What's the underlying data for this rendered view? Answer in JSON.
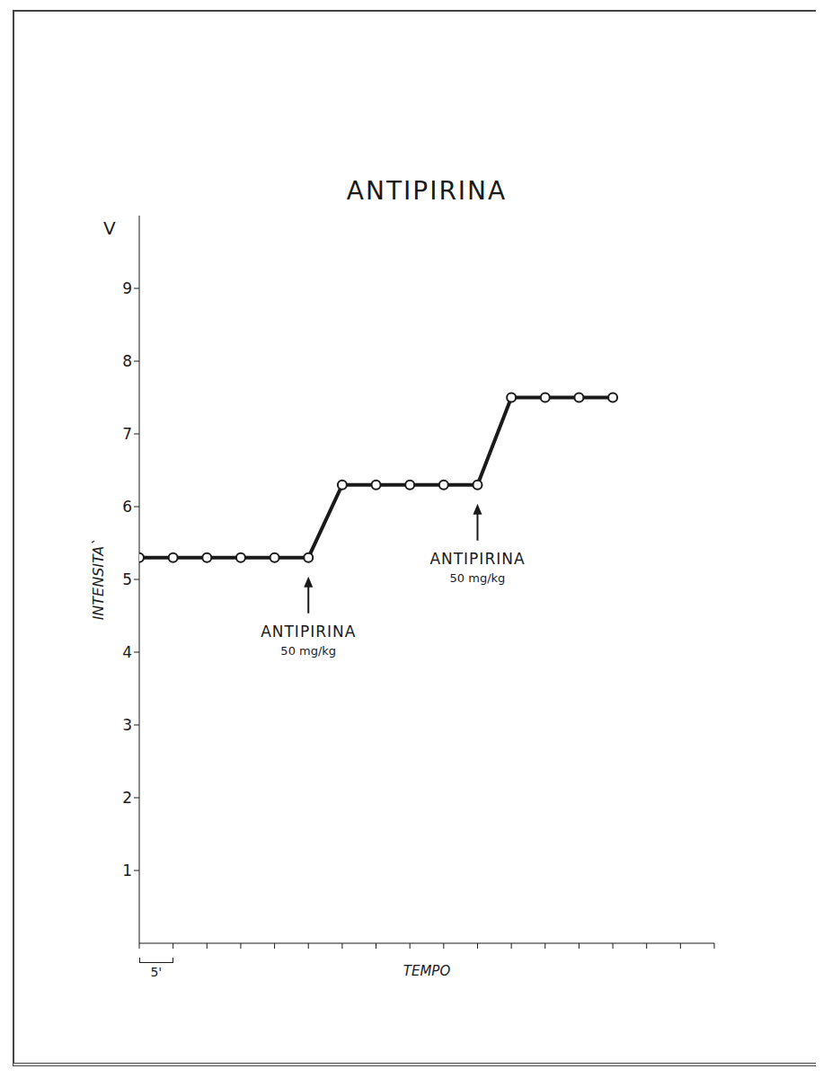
{
  "chart_data": {
    "type": "line",
    "title": "ANTIPIRINA",
    "y_label": "INTENSITA`",
    "y_unit": "V",
    "x_label": "TEMPO",
    "x": [
      0,
      5,
      10,
      15,
      20,
      25,
      30,
      35,
      40,
      45,
      50,
      55,
      60,
      65,
      70
    ],
    "values": [
      5.3,
      5.3,
      5.3,
      5.3,
      5.3,
      5.3,
      6.3,
      6.3,
      6.3,
      6.3,
      6.3,
      7.5,
      7.5,
      7.5,
      7.5
    ],
    "color": "#1a1a1a",
    "marker": "o",
    "xlim": [
      0,
      85
    ],
    "xticks": [
      0,
      5,
      10,
      15,
      20,
      25,
      30,
      35,
      40,
      45,
      50,
      55,
      60,
      65,
      70,
      75,
      80,
      85
    ],
    "ylim": [
      0,
      10
    ],
    "yticks": [
      1,
      2,
      3,
      4,
      5,
      6,
      7,
      8,
      9
    ],
    "tick_labels": "y",
    "x_scale_bar": {
      "value": 5,
      "label": "5'"
    },
    "annotations": [
      {
        "x": 25,
        "text": "ANTIPIRINA",
        "dose": "50 mg/kg"
      },
      {
        "x": 50,
        "text": "ANTIPIRINA",
        "dose": "50 mg/kg"
      }
    ]
  }
}
